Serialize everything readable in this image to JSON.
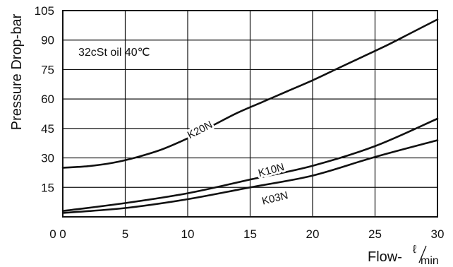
{
  "chart_data": {
    "type": "line",
    "title": "",
    "xlabel": "Flow-ℓ/min",
    "xlabel_main": "Flow-",
    "xlabel_unit_top": "ℓ",
    "xlabel_unit_bottom": "min",
    "ylabel": "Pressure Drop-bar",
    "annotation": "32cSt oil 40℃",
    "xlim": [
      0,
      30
    ],
    "ylim": [
      0,
      105
    ],
    "xticks": [
      0,
      5,
      10,
      15,
      20,
      25,
      30
    ],
    "yticks": [
      15,
      30,
      45,
      60,
      75,
      90,
      105
    ],
    "grid": true,
    "series": [
      {
        "name": "K20N",
        "x": [
          0,
          2,
          4,
          6,
          8,
          10,
          12,
          14,
          16,
          18,
          20,
          22,
          24,
          26,
          28,
          30
        ],
        "y": [
          25,
          25.8,
          27.5,
          30.5,
          34.5,
          40,
          46.5,
          53,
          58.5,
          64,
          69.5,
          75.5,
          81.5,
          87.5,
          94,
          100.5
        ]
      },
      {
        "name": "K10N",
        "x": [
          0,
          5,
          10,
          15,
          20,
          25,
          30
        ],
        "y": [
          3,
          7,
          12,
          19,
          26,
          36,
          50
        ]
      },
      {
        "name": "K03N",
        "x": [
          0,
          5,
          10,
          15,
          20,
          25,
          30
        ],
        "y": [
          2,
          4.5,
          9,
          15,
          21,
          30.5,
          39
        ]
      }
    ],
    "series_labels": [
      {
        "series": "K20N",
        "text": "K20N",
        "at_x": 11,
        "at_y": 44,
        "angle": -27
      },
      {
        "series": "K10N",
        "text": "K10N",
        "at_x": 16.7,
        "at_y": 23.5,
        "angle": -15
      },
      {
        "series": "K03N",
        "text": "K03N",
        "at_x": 17.0,
        "at_y": 9.2,
        "angle": -14
      }
    ]
  }
}
